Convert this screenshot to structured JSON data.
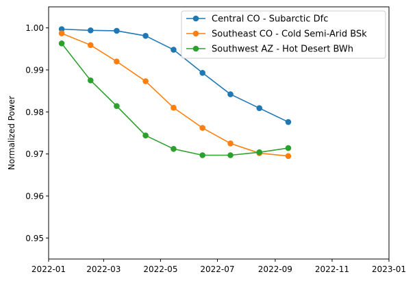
{
  "chart_data": {
    "type": "line",
    "title": "",
    "xlabel": "",
    "ylabel": "Normalized Power",
    "x_axis_type": "date",
    "xlim": [
      "2022-01-01",
      "2023-01-01"
    ],
    "ylim": [
      0.945,
      1.005
    ],
    "x_ticks": [
      "2022-01",
      "2022-03",
      "2022-05",
      "2022-07",
      "2022-09",
      "2022-11",
      "2023-01"
    ],
    "y_ticks": [
      0.95,
      0.96,
      0.97,
      0.98,
      0.99,
      1.0
    ],
    "y_tick_labels": [
      "0.95",
      "0.96",
      "0.97",
      "0.98",
      "0.99",
      "1.00"
    ],
    "grid": false,
    "legend_position": "top-right",
    "marker": "circle",
    "x": [
      "2022-01-15",
      "2022-02-15",
      "2022-03-15",
      "2022-04-15",
      "2022-05-15",
      "2022-06-15",
      "2022-07-15",
      "2022-08-15",
      "2022-09-15"
    ],
    "series": [
      {
        "name": "Central CO - Subarctic Dfc",
        "color": "#1f77b4",
        "values": [
          0.9997,
          0.9994,
          0.9993,
          0.9981,
          0.9948,
          0.9893,
          0.9842,
          0.9809,
          0.9776
        ]
      },
      {
        "name": "Southeast CO - Cold Semi-Arid BSk",
        "color": "#ff7f0e",
        "values": [
          0.9987,
          0.9959,
          0.992,
          0.9873,
          0.981,
          0.9762,
          0.9725,
          0.9702,
          0.9695
        ]
      },
      {
        "name": "Southwest AZ - Hot Desert BWh",
        "color": "#2ca02c",
        "values": [
          0.9963,
          0.9875,
          0.9814,
          0.9744,
          0.9712,
          0.9697,
          0.9697,
          0.9704,
          0.9714
        ]
      }
    ]
  }
}
